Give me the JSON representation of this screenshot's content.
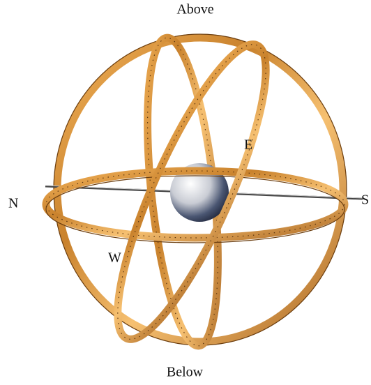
{
  "labels": {
    "above": "Above",
    "below": "Below",
    "north": "N",
    "south": "S",
    "east": "E",
    "west": "W"
  }
}
